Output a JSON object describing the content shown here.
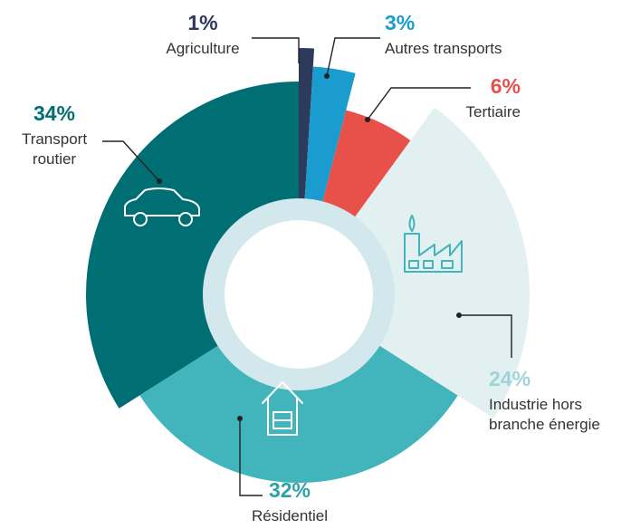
{
  "chart_data": {
    "type": "pie",
    "categories": [
      "Agriculture",
      "Autres transports",
      "Tertiaire",
      "Industrie hors branche énergie",
      "Résidentiel",
      "Transport routier"
    ],
    "values": [
      1,
      3,
      6,
      24,
      32,
      34
    ],
    "value_labels": [
      "1%",
      "3%",
      "6%",
      "24%",
      "32%",
      "34%"
    ],
    "colors": [
      "#2d3a5c",
      "#1a9ccf",
      "#e8504a",
      "#e3f0f2",
      "#41b4bc",
      "#006f73"
    ]
  }
}
